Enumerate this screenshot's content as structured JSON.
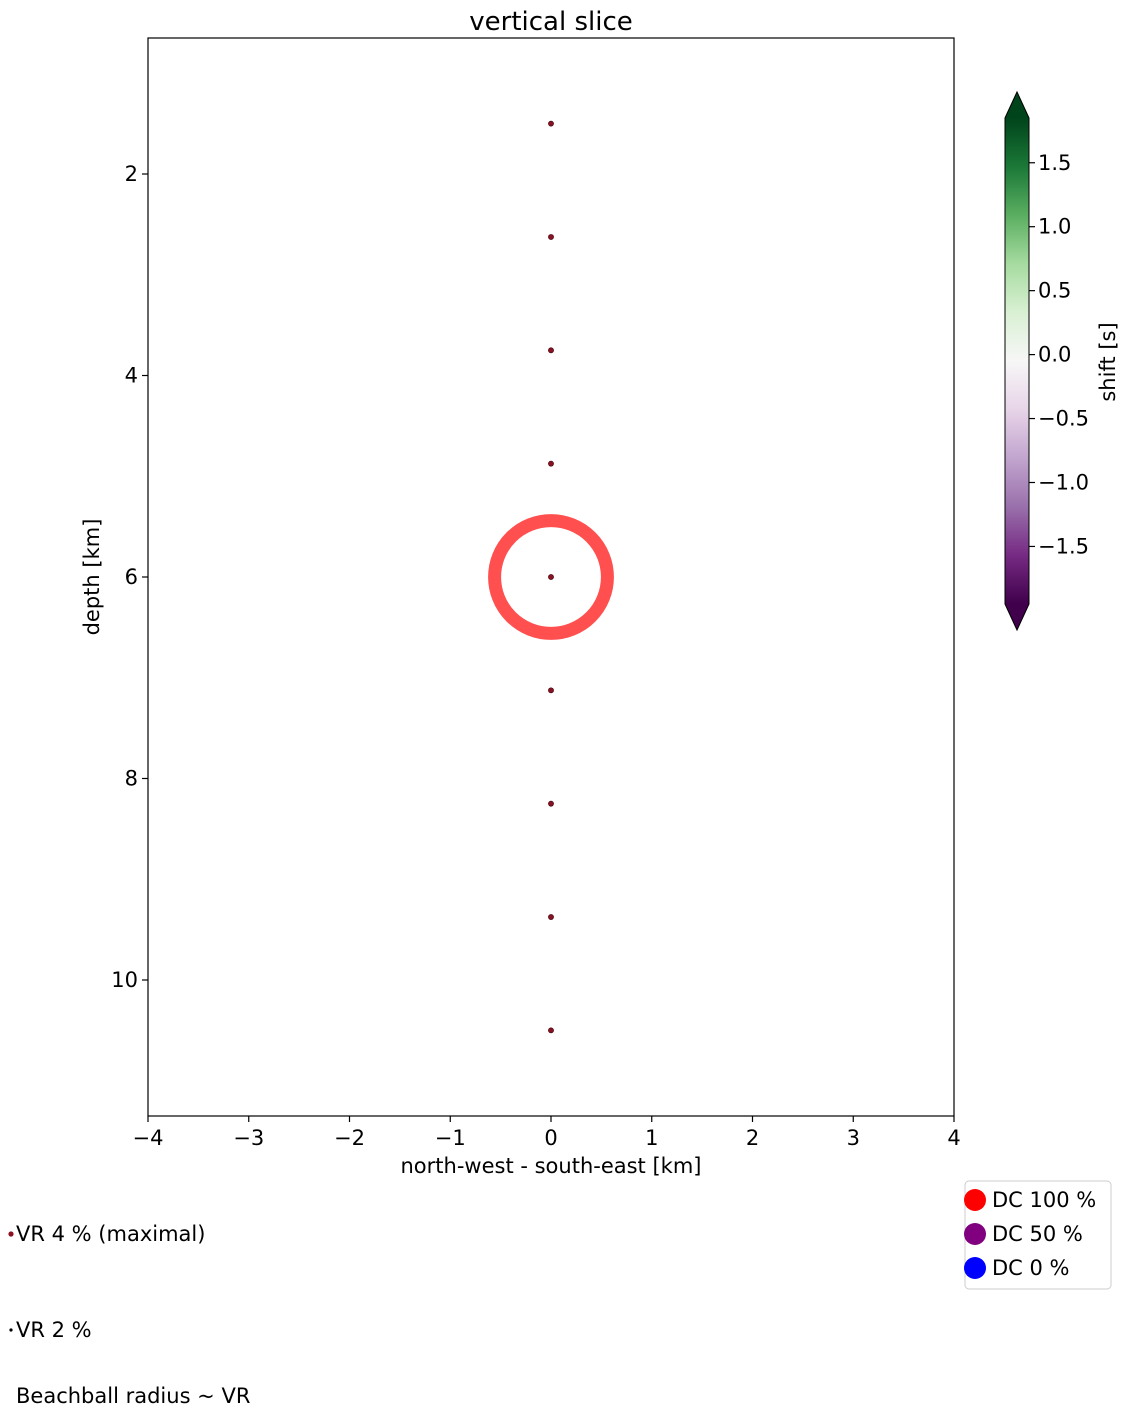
{
  "chart_data": {
    "type": "scatter",
    "title": "vertical slice",
    "xlabel": "north-west - south-east [km]",
    "ylabel": "depth [km]",
    "xlim": [
      -4,
      4
    ],
    "ylim": [
      11.35,
      0.65
    ],
    "y_inverted": true,
    "x_ticks": [
      -4,
      -3,
      -2,
      -1,
      0,
      1,
      2,
      3,
      4
    ],
    "x_tick_labels": [
      "−4",
      "−3",
      "−2",
      "−1",
      "0",
      "1",
      "2",
      "3",
      "4"
    ],
    "y_ticks": [
      2,
      4,
      6,
      8,
      10
    ],
    "y_tick_labels": [
      "2",
      "4",
      "6",
      "8",
      "10"
    ],
    "points": [
      {
        "x": 0,
        "depth": 1.5
      },
      {
        "x": 0,
        "depth": 2.625
      },
      {
        "x": 0,
        "depth": 3.75
      },
      {
        "x": 0,
        "depth": 4.875
      },
      {
        "x": 0,
        "depth": 6.0
      },
      {
        "x": 0,
        "depth": 7.125
      },
      {
        "x": 0,
        "depth": 8.25
      },
      {
        "x": 0,
        "depth": 9.375
      },
      {
        "x": 0,
        "depth": 10.5
      }
    ],
    "point_color": "#8b1020",
    "highlight": {
      "x": 0,
      "depth": 6.0,
      "radius_km": 0.56,
      "color": "#ff4f4f"
    },
    "colorbar": {
      "label": "shift [s]",
      "min": -1.95,
      "max": 1.85,
      "ticks": [
        1.5,
        1.0,
        0.5,
        0.0,
        -0.5,
        -1.0,
        -1.5
      ],
      "tick_labels": [
        "1.5",
        "1.0",
        "0.5",
        "0.0",
        "−0.5",
        "−1.0",
        "−1.5"
      ],
      "colormap": "PRGn",
      "extend": "both",
      "colors": [
        "#40004b",
        "#762a83",
        "#9970ab",
        "#c2a5cf",
        "#e7d4e8",
        "#f7f7f7",
        "#d9f0d3",
        "#a6dba0",
        "#5aae61",
        "#1b7837",
        "#00441b"
      ]
    },
    "legend_dc": [
      {
        "label": "DC 100 %",
        "color": "#ff0000"
      },
      {
        "label": "DC 50 %",
        "color": "#800080"
      },
      {
        "label": "DC 0 %",
        "color": "#0000ff"
      }
    ],
    "legend_vr": [
      {
        "label": "VR  4 % (maximal)"
      },
      {
        "label": "VR  2 %"
      }
    ],
    "note": "Beachball radius ~ VR"
  }
}
